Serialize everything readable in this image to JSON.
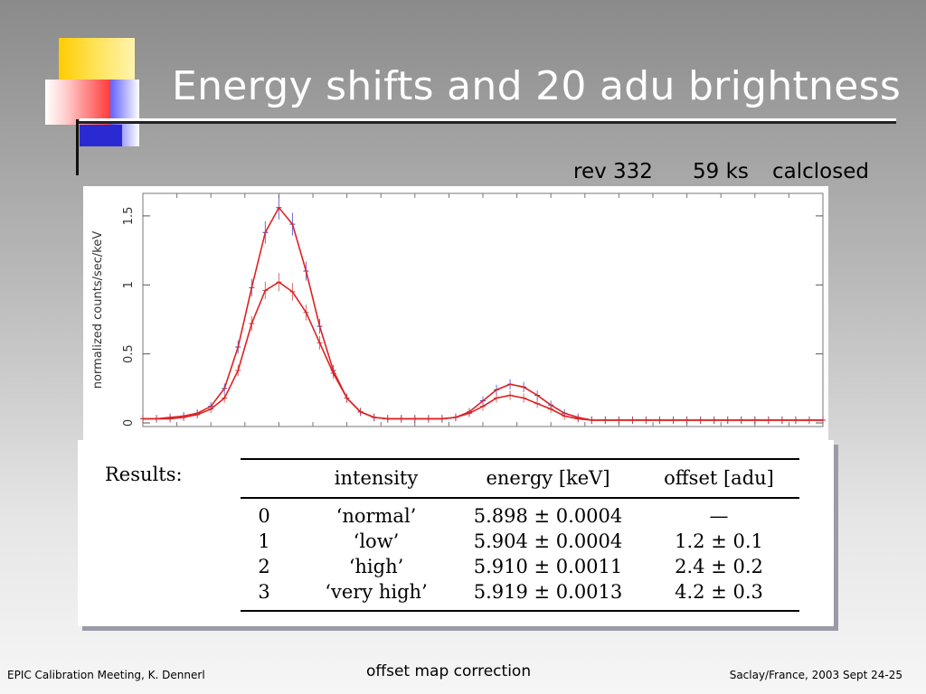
{
  "slide": {
    "title": "Energy shifts and 20 adu brightness",
    "info": {
      "rev": "rev 332",
      "exposure": "59 ks",
      "mode": "calclosed"
    }
  },
  "chart_data": {
    "type": "line",
    "ylabel": "normalized counts/sec/keV",
    "yticks": [
      "0",
      "0.5",
      "1",
      "1.5"
    ],
    "ylim": [
      0,
      1.65
    ],
    "x": [
      0.0,
      0.02,
      0.04,
      0.06,
      0.08,
      0.1,
      0.12,
      0.14,
      0.16,
      0.18,
      0.2,
      0.22,
      0.24,
      0.26,
      0.28,
      0.3,
      0.32,
      0.34,
      0.36,
      0.38,
      0.4,
      0.42,
      0.44,
      0.46,
      0.48,
      0.5,
      0.52,
      0.54,
      0.56,
      0.58,
      0.6,
      0.62,
      0.64,
      0.66,
      0.68,
      0.7,
      0.72,
      0.74,
      0.76,
      0.78,
      0.8,
      0.82,
      0.84,
      0.86,
      0.88,
      0.9,
      0.92,
      0.94,
      0.96,
      0.98,
      1.0
    ],
    "series": [
      {
        "color": "#3a3acc",
        "values": [
          0.03,
          0.03,
          0.04,
          0.05,
          0.07,
          0.12,
          0.25,
          0.55,
          0.98,
          1.38,
          1.56,
          1.44,
          1.1,
          0.7,
          0.38,
          0.18,
          0.08,
          0.04,
          0.03,
          0.03,
          0.03,
          0.03,
          0.03,
          0.04,
          0.08,
          0.16,
          0.24,
          0.28,
          0.26,
          0.2,
          0.13,
          0.07,
          0.04,
          0.02,
          0.02,
          0.02,
          0.02,
          0.02,
          0.02,
          0.02,
          0.02,
          0.02,
          0.02,
          0.02,
          0.02,
          0.02,
          0.02,
          0.02,
          0.02,
          0.02,
          0.02
        ]
      },
      {
        "color": "#cc3a3a",
        "values": [
          0.03,
          0.03,
          0.03,
          0.04,
          0.06,
          0.1,
          0.18,
          0.38,
          0.72,
          0.96,
          1.02,
          0.95,
          0.8,
          0.58,
          0.36,
          0.18,
          0.08,
          0.04,
          0.03,
          0.03,
          0.03,
          0.03,
          0.03,
          0.04,
          0.07,
          0.12,
          0.18,
          0.2,
          0.18,
          0.14,
          0.1,
          0.05,
          0.03,
          0.02,
          0.02,
          0.02,
          0.02,
          0.02,
          0.02,
          0.02,
          0.02,
          0.02,
          0.02,
          0.02,
          0.02,
          0.02,
          0.02,
          0.02,
          0.02,
          0.02,
          0.02
        ]
      }
    ]
  },
  "results": {
    "label": "Results:",
    "headers": [
      "",
      "intensity",
      "energy [keV]",
      "offset [adu]"
    ],
    "rows": [
      [
        "0",
        "‘normal’",
        "5.898 ± 0.0004",
        "—"
      ],
      [
        "1",
        "‘low’",
        "5.904 ± 0.0004",
        "1.2 ± 0.1"
      ],
      [
        "2",
        "‘high’",
        "5.910 ± 0.0011",
        "2.4 ± 0.2"
      ],
      [
        "3",
        "‘very high’",
        "5.919 ± 0.0013",
        "4.2 ± 0.3"
      ]
    ]
  },
  "footer": {
    "left": "EPIC Calibration Meeting, K. Dennerl",
    "center": "offset map correction",
    "right": "Saclay/France, 2003 Sept 24-25"
  }
}
